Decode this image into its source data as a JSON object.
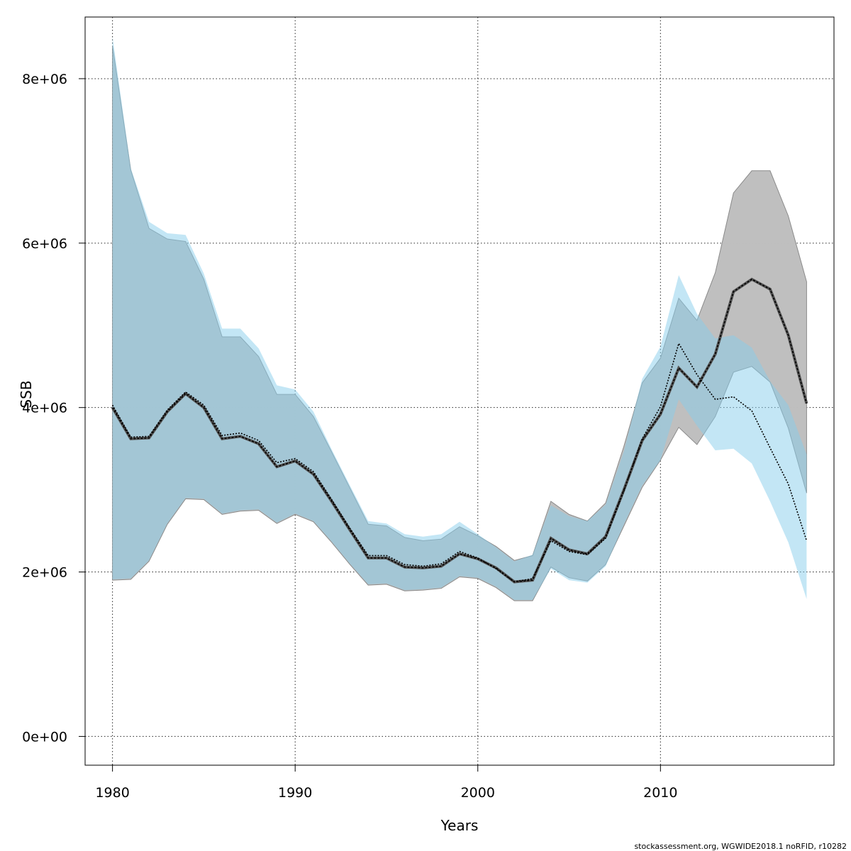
{
  "chart_data": {
    "type": "area",
    "title": "",
    "xlabel": "Years",
    "ylabel": "SSB",
    "xlim": [
      1978.5,
      2019.5
    ],
    "ylim": [
      -350000,
      8750000
    ],
    "x_ticks": [
      1980,
      1990,
      2000,
      2010
    ],
    "x_tick_labels": [
      "1980",
      "1990",
      "2000",
      "2010"
    ],
    "y_ticks": [
      0,
      2000000,
      4000000,
      6000000,
      8000000
    ],
    "y_tick_labels": [
      "0e+00",
      "2e+06",
      "4e+06",
      "6e+06",
      "8e+06"
    ],
    "grid": true,
    "footer": "stockassessment.org, WGWIDE2018.1 noRFID, r10282",
    "colors": {
      "grey_band": "#bebebe",
      "blue_band": "#87ceeb",
      "grey_line": "#000000",
      "blue_line": "#000000"
    },
    "series": [
      {
        "x": [
          1980,
          1981,
          1982,
          1983,
          1984,
          1985,
          1986,
          1987,
          1988,
          1989,
          1990,
          1991,
          1992,
          1993,
          1994,
          1995,
          1996,
          1997,
          1998,
          1999,
          2000,
          2001,
          2002,
          2003,
          2004,
          2005,
          2006,
          2007,
          2008,
          2009,
          2010,
          2011,
          2012,
          2013,
          2014,
          2015,
          2016,
          2017,
          2018
        ],
        "estimate": [
          4000000,
          3620000,
          3630000,
          3950000,
          4170000,
          4000000,
          3620000,
          3650000,
          3560000,
          3280000,
          3350000,
          3190000,
          2860000,
          2510000,
          2170000,
          2170000,
          2060000,
          2050000,
          2070000,
          2220000,
          2160000,
          2050000,
          1880000,
          1900000,
          2410000,
          2270000,
          2220000,
          2430000,
          3000000,
          3600000,
          3920000,
          4480000,
          4250000,
          4650000,
          5410000,
          5560000,
          5440000,
          4880000,
          4050000
        ],
        "lower": [
          1900000,
          1910000,
          2130000,
          2580000,
          2890000,
          2880000,
          2700000,
          2740000,
          2750000,
          2590000,
          2700000,
          2610000,
          2360000,
          2090000,
          1840000,
          1850000,
          1770000,
          1780000,
          1800000,
          1940000,
          1920000,
          1810000,
          1650000,
          1650000,
          2060000,
          1930000,
          1890000,
          2090000,
          2560000,
          3030000,
          3360000,
          3760000,
          3550000,
          3890000,
          4430000,
          4500000,
          4310000,
          3750000,
          2960000
        ],
        "upper": [
          8400000,
          6890000,
          6180000,
          6050000,
          6020000,
          5560000,
          4860000,
          4860000,
          4620000,
          4160000,
          4160000,
          3890000,
          3460000,
          3020000,
          2580000,
          2560000,
          2420000,
          2380000,
          2400000,
          2550000,
          2440000,
          2310000,
          2140000,
          2200000,
          2860000,
          2700000,
          2620000,
          2840000,
          3530000,
          4300000,
          4600000,
          5330000,
          5060000,
          5640000,
          6610000,
          6880000,
          6880000,
          6330000,
          5530000
        ]
      },
      {
        "x": [
          1980,
          1981,
          1982,
          1983,
          1984,
          1985,
          1986,
          1987,
          1988,
          1989,
          1990,
          1991,
          1992,
          1993,
          1994,
          1995,
          1996,
          1997,
          1998,
          1999,
          2000,
          2001,
          2002,
          2003,
          2004,
          2005,
          2006,
          2007,
          2008,
          2009,
          2010,
          2011,
          2012,
          2013,
          2014,
          2015,
          2016,
          2017,
          2018
        ],
        "estimate": [
          4030000,
          3640000,
          3650000,
          3970000,
          4190000,
          4030000,
          3660000,
          3690000,
          3600000,
          3330000,
          3380000,
          3220000,
          2880000,
          2530000,
          2200000,
          2200000,
          2090000,
          2070000,
          2100000,
          2250000,
          2170000,
          2040000,
          1880000,
          1920000,
          2380000,
          2250000,
          2210000,
          2410000,
          2990000,
          3620000,
          4010000,
          4780000,
          4400000,
          4100000,
          4130000,
          3960000,
          3510000,
          3070000,
          2380000
        ],
        "lower": [
          1910000,
          1920000,
          2140000,
          2590000,
          2900000,
          2890000,
          2710000,
          2750000,
          2760000,
          2600000,
          2710000,
          2620000,
          2370000,
          2100000,
          1850000,
          1860000,
          1780000,
          1790000,
          1810000,
          1950000,
          1930000,
          1820000,
          1660000,
          1660000,
          2040000,
          1900000,
          1870000,
          2070000,
          2580000,
          3050000,
          3360000,
          4100000,
          3780000,
          3480000,
          3500000,
          3320000,
          2860000,
          2360000,
          1670000
        ],
        "upper": [
          8510000,
          6910000,
          6260000,
          6120000,
          6100000,
          5630000,
          4960000,
          4960000,
          4720000,
          4270000,
          4220000,
          3950000,
          3490000,
          3050000,
          2620000,
          2590000,
          2460000,
          2430000,
          2460000,
          2610000,
          2460000,
          2300000,
          2130000,
          2210000,
          2810000,
          2680000,
          2620000,
          2820000,
          3470000,
          4350000,
          4740000,
          5610000,
          5140000,
          4840000,
          4880000,
          4730000,
          4320000,
          4030000,
          3430000
        ]
      }
    ]
  }
}
